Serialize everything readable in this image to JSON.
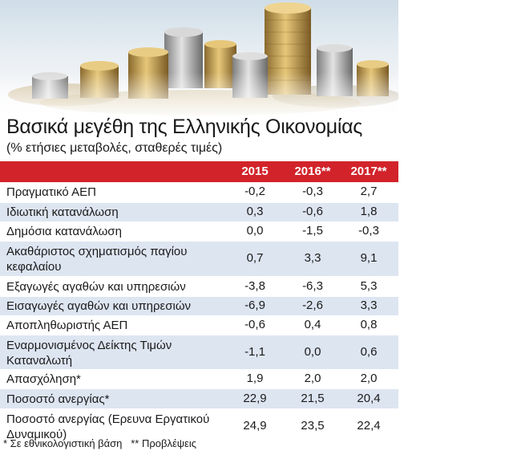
{
  "title": "Βασικά μεγέθη της Ελληνικής Οικονομίας",
  "subtitle": "(% ετήσιες μεταβολές, σταθερές τιμές)",
  "table": {
    "headers": [
      "2015",
      "2016**",
      "2017**"
    ],
    "rows": [
      {
        "label": "Πραγματικό ΑΕΠ",
        "values": [
          "-0,2",
          "-0,3",
          "2,7"
        ]
      },
      {
        "label": "Ιδιωτική κατανάλωση",
        "values": [
          "0,3",
          "-0,6",
          "1,8"
        ]
      },
      {
        "label": "Δημόσια κατανάλωση",
        "values": [
          "0,0",
          "-1,5",
          "-0,3"
        ]
      },
      {
        "label": "Ακαθάριστος σχηματισμός παγίου κεφαλαίου",
        "values": [
          "0,7",
          "3,3",
          "9,1"
        ]
      },
      {
        "label": "Εξαγωγές αγαθών και υπηρεσιών",
        "values": [
          "-3,8",
          "-6,3",
          "5,3"
        ]
      },
      {
        "label": "Εισαγωγές αγαθών και υπηρεσιών",
        "values": [
          "-6,9",
          "-2,6",
          "3,3"
        ]
      },
      {
        "label": "Αποπληθωριστής ΑΕΠ",
        "values": [
          "-0,6",
          "0,4",
          "0,8"
        ]
      },
      {
        "label": "Εναρμονισμένος Δείκτης Τιμών Καταναλωτή",
        "values": [
          "-1,1",
          "0,0",
          "0,6"
        ]
      },
      {
        "label": "Απασχόληση*",
        "values": [
          "1,9",
          "2,0",
          "2,0"
        ]
      },
      {
        "label": "Ποσοστό ανεργίας*",
        "values": [
          "22,9",
          "21,5",
          "20,4"
        ]
      },
      {
        "label": "Ποσοστό ανεργίας (Ερευνα Εργατικού Δυναμικού)",
        "values": [
          "24,9",
          "23,5",
          "22,4"
        ]
      }
    ]
  },
  "footnote": "* Σε εθνικολογιστική βάση   ** Προβλέψεις",
  "colors": {
    "header": "#d2232a",
    "stripe": "#dde5f1"
  }
}
